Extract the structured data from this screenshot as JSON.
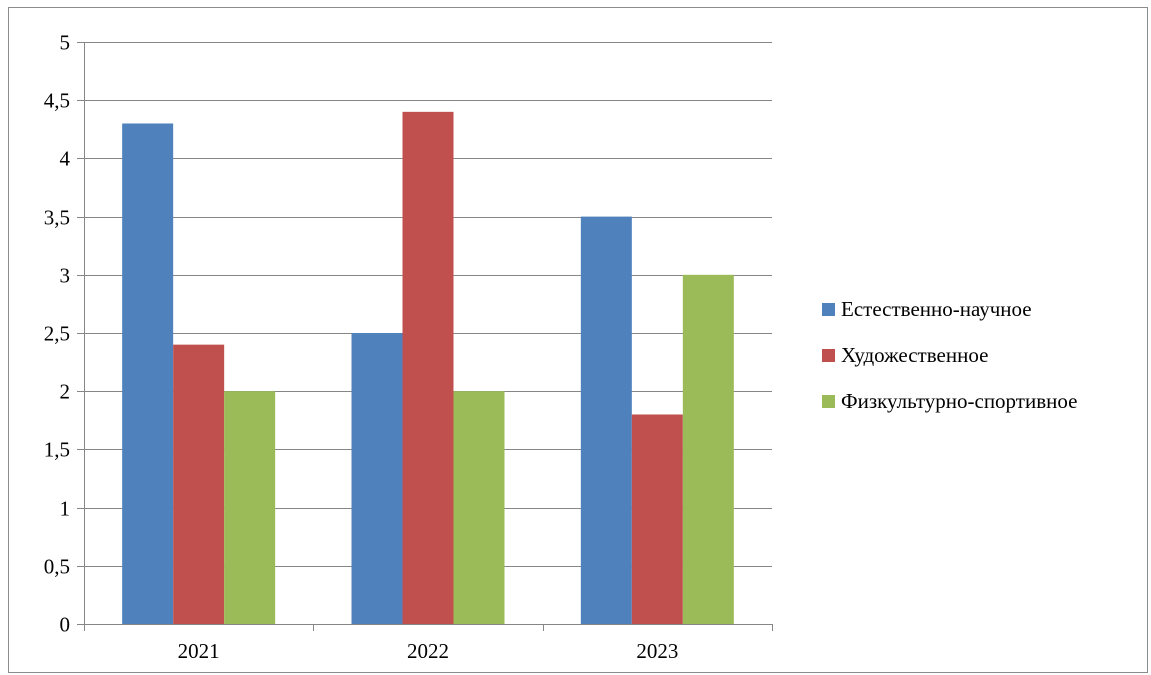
{
  "chart_data": {
    "type": "bar",
    "categories": [
      "2021",
      "2022",
      "2023"
    ],
    "series": [
      {
        "name": "Естественно-научное",
        "color": "#4F81BD",
        "values": [
          4.3,
          2.5,
          3.5
        ]
      },
      {
        "name": "Художественное",
        "color": "#C0504D",
        "values": [
          2.4,
          4.4,
          1.8
        ]
      },
      {
        "name": "Физкультурно-спортивное",
        "color": "#9BBB59",
        "values": [
          2.0,
          2.0,
          3.0
        ]
      }
    ],
    "ylim": [
      0,
      5
    ],
    "yticks": [
      "0",
      "0,5",
      "1",
      "1,5",
      "2",
      "2,5",
      "3",
      "3,5",
      "4",
      "4,5",
      "5"
    ],
    "grid": true,
    "legend_position": "right"
  }
}
